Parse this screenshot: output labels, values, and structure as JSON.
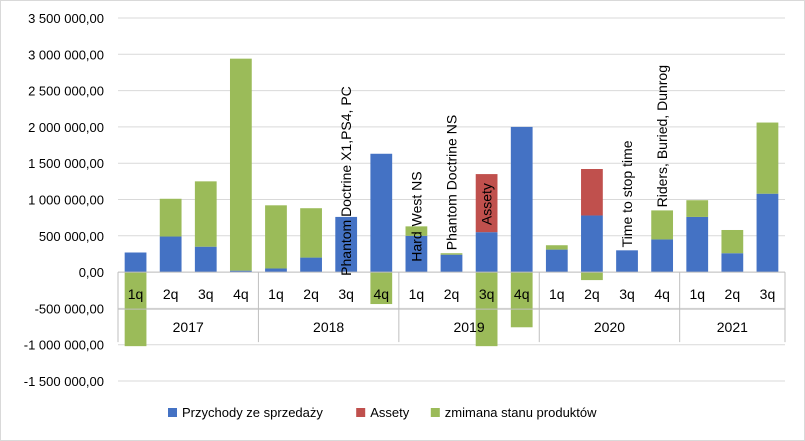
{
  "chart_data": {
    "type": "bar",
    "stacked": true,
    "title": "",
    "xlabel": "",
    "ylabel": "",
    "ylim": [
      -1500000,
      3500000
    ],
    "ytick_step": 500000,
    "y_tick_labels": [
      "3 500 000,00",
      "3 000 000,00",
      "2 500 000,00",
      "2 000 000,00",
      "1 500 000,00",
      "1 000 000,00",
      "500 000,00",
      "0,00",
      "-500 000,00",
      "-1 000 000,00",
      "-1 500 000,00"
    ],
    "grid": true,
    "legend_position": "bottom",
    "groups": [
      {
        "label": "2017",
        "quarters": [
          "1q",
          "2q",
          "3q",
          "4q"
        ]
      },
      {
        "label": "2018",
        "quarters": [
          "1q",
          "2q",
          "3q",
          "4q"
        ]
      },
      {
        "label": "2019",
        "quarters": [
          "1q",
          "2q",
          "3q",
          "4q"
        ]
      },
      {
        "label": "2020",
        "quarters": [
          "1q",
          "2q",
          "3q",
          "4q"
        ]
      },
      {
        "label": "2021",
        "quarters": [
          "1q",
          "2q",
          "3q"
        ]
      }
    ],
    "series": [
      {
        "name": "Przychody ze sprzedaży",
        "color": "#4472c4",
        "values": [
          270000,
          490000,
          350000,
          20000,
          50000,
          200000,
          760000,
          1630000,
          500000,
          240000,
          550000,
          2000000,
          310000,
          780000,
          300000,
          450000,
          760000,
          260000,
          1080000
        ]
      },
      {
        "name": "Assety",
        "color": "#c0504d",
        "values": [
          0,
          0,
          0,
          0,
          0,
          0,
          0,
          0,
          0,
          0,
          800000,
          0,
          0,
          640000,
          0,
          0,
          0,
          0,
          0
        ]
      },
      {
        "name": "zmimana stanu produktów",
        "color": "#9bbb59",
        "values": [
          -1020000,
          520000,
          900000,
          2920000,
          870000,
          680000,
          0,
          -440000,
          130000,
          20000,
          -1020000,
          -760000,
          60000,
          -110000,
          0,
          400000,
          230000,
          320000,
          980000
        ]
      }
    ],
    "annotations": [
      {
        "text": "Phantom",
        "color": "#ffff00",
        "bar_index": 6,
        "angle": -90
      },
      {
        "text": "Doctrine X1,PS4, PC",
        "color": "#000000",
        "bar_index": 6,
        "angle": -90
      },
      {
        "text": "Hard",
        "color": "#ffff00",
        "bar_index": 8,
        "angle": -90
      },
      {
        "text": "West NS",
        "color": "#000000",
        "bar_index": 8,
        "angle": -90
      },
      {
        "text": "Phantom Doctrine NS",
        "color": "#000000",
        "bar_index": 9,
        "angle": -90
      },
      {
        "text": "Assety",
        "color": "#ffff00",
        "bar_index": 10,
        "angle": -90
      },
      {
        "text": "Time to stop time",
        "color": "#000000",
        "bar_index": 14,
        "angle": -90
      },
      {
        "text": "Riders, Buried, Dunrog",
        "color": "#000000",
        "bar_index": 15,
        "angle": -90
      }
    ]
  }
}
